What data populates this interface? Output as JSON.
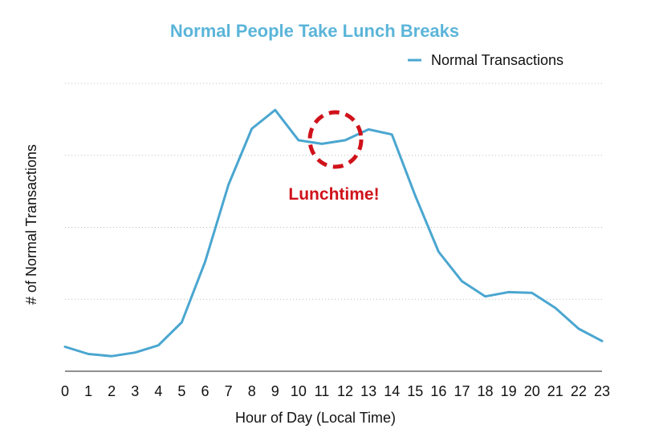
{
  "colors": {
    "title": "#5bb5d9",
    "series": "#4aa6d0",
    "annotation": "#d0121a",
    "grid": "#bbbbbb",
    "axis": "#222222"
  },
  "chart_data": {
    "type": "line",
    "title": "Normal People Take Lunch Breaks",
    "xlabel": "Hour of Day (Local Time)",
    "ylabel": "# of Normal Transactions",
    "x": [
      0,
      1,
      2,
      3,
      4,
      5,
      6,
      7,
      8,
      9,
      10,
      11,
      12,
      13,
      14,
      15,
      16,
      17,
      18,
      19,
      20,
      21,
      22,
      23
    ],
    "x_tick_labels": [
      "0",
      "1",
      "2",
      "3",
      "4",
      "5",
      "6",
      "7",
      "8",
      "9",
      "10",
      "11",
      "12",
      "13",
      "14",
      "15",
      "16",
      "17",
      "18",
      "19",
      "20",
      "21",
      "22",
      "23"
    ],
    "series": [
      {
        "name": "Normal Transactions",
        "values": [
          0.34,
          0.24,
          0.21,
          0.26,
          0.36,
          0.68,
          1.52,
          2.59,
          3.37,
          3.63,
          3.21,
          3.16,
          3.21,
          3.36,
          3.29,
          2.44,
          1.66,
          1.25,
          1.04,
          1.1,
          1.09,
          0.88,
          0.59,
          0.42
        ]
      }
    ],
    "ylim": [
      0,
      4
    ],
    "yticks": [
      0,
      1,
      2,
      3,
      4
    ],
    "y_tick_labels_shown": false,
    "grid": "horizontal dotted",
    "legend": {
      "placement": "top-right"
    },
    "annotations": [
      {
        "text": "Lunchtime!",
        "x_range": [
          11,
          12
        ],
        "style": "dashed red circle around the dip"
      }
    ]
  }
}
